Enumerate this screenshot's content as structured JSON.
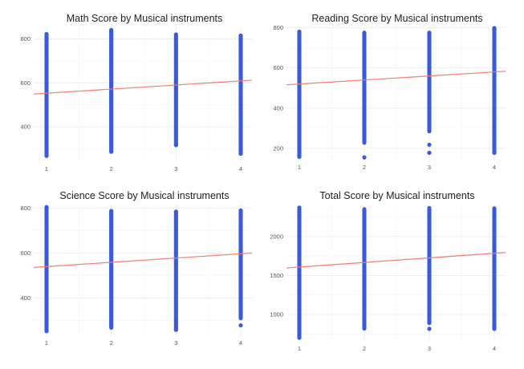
{
  "chart_data": [
    {
      "type": "scatter",
      "title": "Math Score by Musical instruments",
      "xlabel": "",
      "ylabel": "",
      "x_ticks": [
        1,
        2,
        3,
        4
      ],
      "y_ticks": [
        400,
        600,
        800
      ],
      "xlim": [
        0.9,
        4.1
      ],
      "ylim": [
        240,
        860
      ],
      "grid": true,
      "point_color": "#3A5BD9",
      "line_color": "#F07E70",
      "point_ranges": [
        {
          "x": 1,
          "min": 268,
          "max": 822,
          "outliers": []
        },
        {
          "x": 2,
          "min": 287,
          "max": 840,
          "outliers": []
        },
        {
          "x": 3,
          "min": 317,
          "max": 820,
          "outliers": []
        },
        {
          "x": 4,
          "min": 278,
          "max": 815,
          "outliers": []
        }
      ],
      "trend_line": {
        "x": [
          1,
          4
        ],
        "y": [
          553,
          609
        ]
      }
    },
    {
      "type": "scatter",
      "title": "Reading Score by Musical instruments",
      "xlabel": "",
      "ylabel": "",
      "x_ticks": [
        1,
        2,
        3,
        4
      ],
      "y_ticks": [
        200,
        400,
        600,
        800
      ],
      "xlim": [
        0.9,
        4.1
      ],
      "ylim": [
        140,
        810
      ],
      "grid": true,
      "point_color": "#3A5BD9",
      "line_color": "#F07E70",
      "point_ranges": [
        {
          "x": 1,
          "min": 158,
          "max": 780,
          "outliers": []
        },
        {
          "x": 2,
          "min": 228,
          "max": 775,
          "outliers": [
            155
          ]
        },
        {
          "x": 3,
          "min": 285,
          "max": 775,
          "outliers": [
            218,
            178
          ]
        },
        {
          "x": 4,
          "min": 178,
          "max": 798,
          "outliers": []
        }
      ],
      "trend_line": {
        "x": [
          1,
          4
        ],
        "y": [
          520,
          580
        ]
      }
    },
    {
      "type": "scatter",
      "title": "Science Score by Musical instruments",
      "xlabel": "",
      "ylabel": "",
      "x_ticks": [
        1,
        2,
        3,
        4
      ],
      "y_ticks": [
        400,
        600,
        800
      ],
      "xlim": [
        0.9,
        4.1
      ],
      "ylim": [
        230,
        820
      ],
      "grid": true,
      "point_color": "#3A5BD9",
      "line_color": "#F07E70",
      "point_ranges": [
        {
          "x": 1,
          "min": 252,
          "max": 805,
          "outliers": []
        },
        {
          "x": 2,
          "min": 268,
          "max": 788,
          "outliers": []
        },
        {
          "x": 3,
          "min": 258,
          "max": 785,
          "outliers": []
        },
        {
          "x": 4,
          "min": 310,
          "max": 790,
          "outliers": [
            278
          ]
        }
      ],
      "trend_line": {
        "x": [
          1,
          4
        ],
        "y": [
          540,
          597
        ]
      }
    },
    {
      "type": "scatter",
      "title": "Total Score by Musical instruments",
      "xlabel": "",
      "ylabel": "",
      "x_ticks": [
        1,
        2,
        3,
        4
      ],
      "y_ticks": [
        1000,
        1500,
        2000
      ],
      "xlim": [
        0.9,
        4.1
      ],
      "ylim": [
        650,
        2420
      ],
      "grid": true,
      "point_color": "#3A5BD9",
      "line_color": "#F07E70",
      "point_ranges": [
        {
          "x": 1,
          "min": 700,
          "max": 2370,
          "outliers": []
        },
        {
          "x": 2,
          "min": 820,
          "max": 2350,
          "outliers": []
        },
        {
          "x": 3,
          "min": 890,
          "max": 2365,
          "outliers": [
            815
          ]
        },
        {
          "x": 4,
          "min": 815,
          "max": 2360,
          "outliers": []
        }
      ],
      "trend_line": {
        "x": [
          1,
          4
        ],
        "y": [
          1608,
          1785
        ]
      }
    }
  ]
}
